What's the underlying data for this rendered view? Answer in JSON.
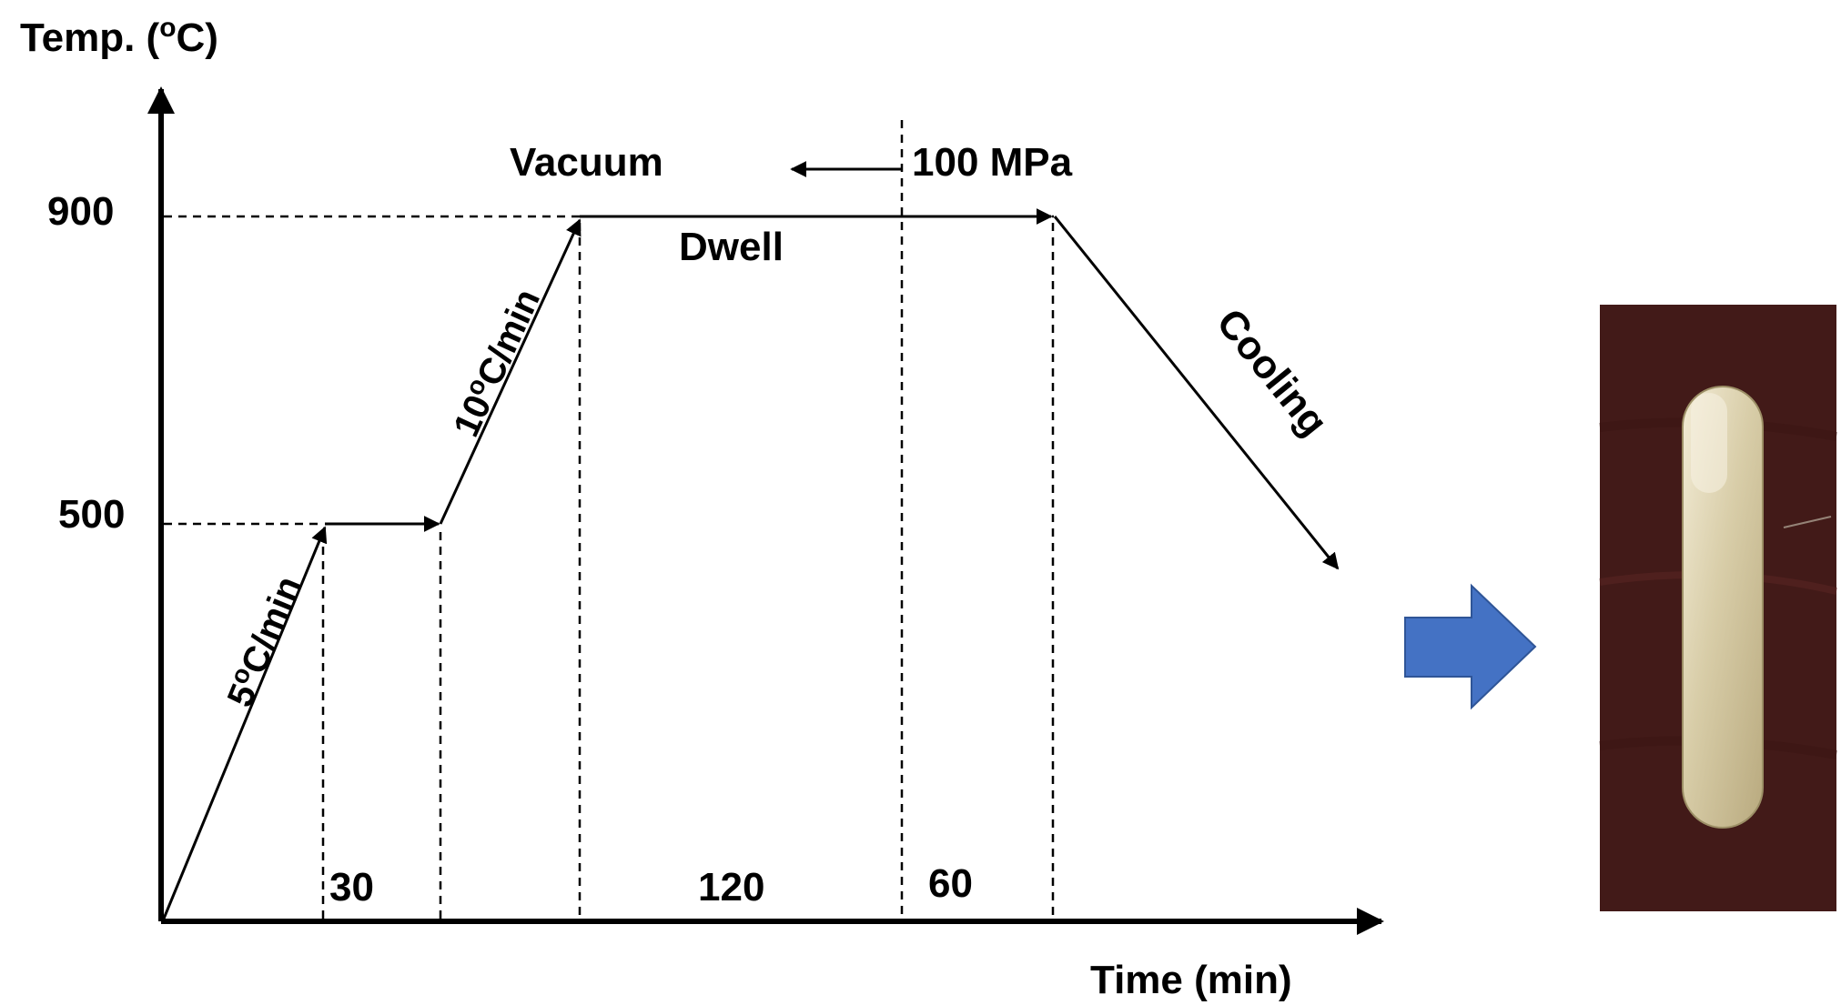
{
  "axes": {
    "y_label_prefix": "Temp. (",
    "y_label_sup": "o",
    "y_label_suffix": "C)",
    "x_label": "Time (min)",
    "y_ticks": [
      "900",
      "500"
    ]
  },
  "ramps": {
    "ramp1": {
      "pre": "5",
      "sup": "o",
      "post": "C/min"
    },
    "ramp2": {
      "pre": "10",
      "sup": "o",
      "post": "C/min"
    }
  },
  "stage_labels": {
    "vacuum": "Vacuum",
    "pressure": "100 MPa",
    "dwell": "Dwell",
    "cooling": "Cooling"
  },
  "durations": {
    "first_hold": "30",
    "dwell_vacuum": "120",
    "dwell_pressure": "60"
  },
  "colors": {
    "arrow_blue": "#4472C4",
    "photo_background": "#4a1f1c",
    "sample": "#d2c6a2"
  }
}
